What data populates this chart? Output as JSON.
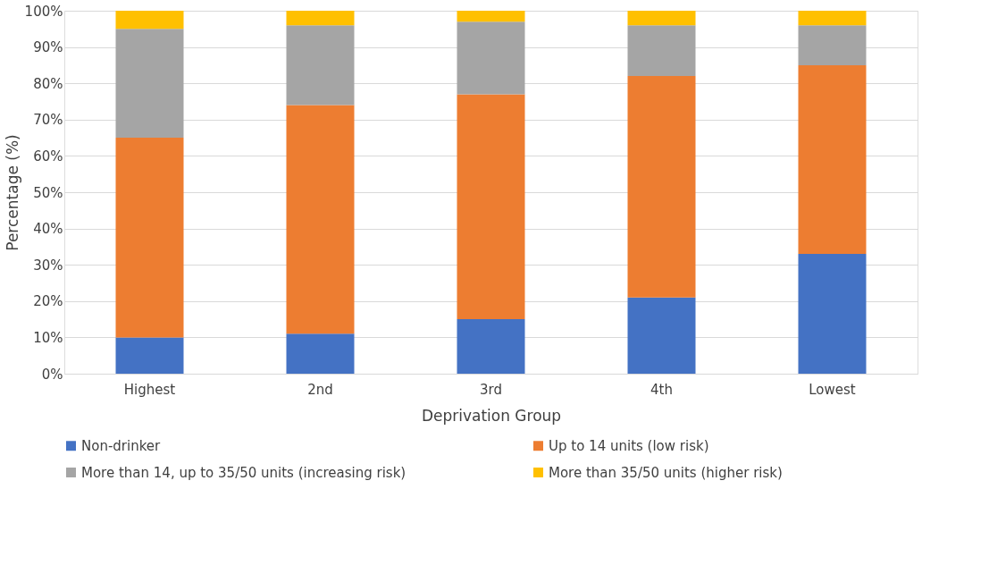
{
  "chart_data": {
    "type": "bar",
    "stacked": true,
    "xlabel": "Deprivation Group",
    "ylabel": "Percentage (%)",
    "categories": [
      "Highest",
      "2nd",
      "3rd",
      "4th",
      "Lowest"
    ],
    "series": [
      {
        "name": "Non-drinker",
        "color": "#4472c4",
        "values": [
          10,
          11,
          15,
          21,
          33
        ]
      },
      {
        "name": "Up to 14 units (low risk)",
        "color": "#ed7d31",
        "values": [
          55,
          63,
          62,
          61,
          52
        ]
      },
      {
        "name": "More than 14, up to 35/50 units (increasing risk)",
        "color": "#a5a5a5",
        "values": [
          30,
          22,
          20,
          14,
          11
        ]
      },
      {
        "name": "More than 35/50 units (higher risk)",
        "color": "#ffc000",
        "values": [
          5,
          4,
          3,
          4,
          4
        ]
      }
    ],
    "ylim": [
      0,
      100
    ],
    "yticks": [
      {
        "value": 0,
        "label": "0%"
      },
      {
        "value": 10,
        "label": "10%"
      },
      {
        "value": 20,
        "label": "20%"
      },
      {
        "value": 30,
        "label": "30%"
      },
      {
        "value": 40,
        "label": "40%"
      },
      {
        "value": 50,
        "label": "50%"
      },
      {
        "value": 60,
        "label": "60%"
      },
      {
        "value": 70,
        "label": "70%"
      },
      {
        "value": 80,
        "label": "80%"
      },
      {
        "value": 90,
        "label": "90%"
      },
      {
        "value": 100,
        "label": "100%"
      }
    ],
    "grid": "y",
    "legend": "bottom"
  }
}
